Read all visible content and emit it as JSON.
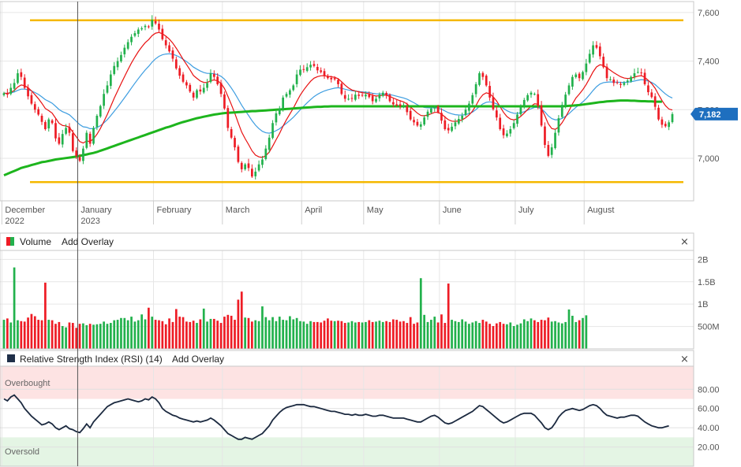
{
  "price_pane": {
    "price_tag": "7,182",
    "colors": {
      "up": "#22b14c",
      "down": "#ee1c25",
      "ma_long": "#1db51d",
      "ma_fast": "#e81010",
      "ma_slow": "#3d9de0",
      "channel": "#f5b800",
      "tag": "#1e6fbf"
    }
  },
  "volume_pane": {
    "title": "Volume",
    "add_overlay": "Add Overlay",
    "close": "×"
  },
  "rsi_pane": {
    "title": "Relative Strength Index (RSI) (14)",
    "add_overlay": "Add Overlay",
    "close": "×",
    "overbought_label": "Overbought",
    "oversold_label": "Oversold"
  },
  "chart_data": {
    "type": "candlestick",
    "period": "Dec 2022 – Aug 2023 (daily)",
    "x_labels": [
      {
        "label": "December",
        "sub": "2022",
        "index": 0
      },
      {
        "label": "January",
        "sub": "2023",
        "index": 22
      },
      {
        "label": "February",
        "sub": "",
        "index": 44
      },
      {
        "label": "March",
        "sub": "",
        "index": 64
      },
      {
        "label": "April",
        "sub": "",
        "index": 87
      },
      {
        "label": "May",
        "sub": "",
        "index": 105
      },
      {
        "label": "June",
        "sub": "",
        "index": 127
      },
      {
        "label": "July",
        "sub": "",
        "index": 149
      },
      {
        "label": "August",
        "sub": "",
        "index": 169
      }
    ],
    "price": {
      "y_ticks": [
        "7,600",
        "7,400",
        "7,200",
        "7,000"
      ],
      "y_tick_values": [
        7600,
        7400,
        7200,
        7000
      ],
      "ylim": [
        6825,
        7645
      ],
      "channel_levels": [
        7568,
        6902
      ],
      "last_price": 7182,
      "closes": [
        7268,
        7262,
        7290,
        7310,
        7350,
        7335,
        7290,
        7255,
        7225,
        7200,
        7180,
        7150,
        7120,
        7160,
        7145,
        7082,
        7060,
        7100,
        7125,
        7105,
        7030,
        7010,
        6990,
        7040,
        7105,
        7060,
        7125,
        7175,
        7215,
        7265,
        7300,
        7345,
        7380,
        7400,
        7425,
        7455,
        7478,
        7500,
        7515,
        7530,
        7535,
        7545,
        7540,
        7570,
        7555,
        7530,
        7490,
        7465,
        7440,
        7410,
        7370,
        7340,
        7315,
        7300,
        7275,
        7250,
        7280,
        7275,
        7290,
        7310,
        7350,
        7335,
        7305,
        7265,
        7205,
        7125,
        7085,
        7045,
        6985,
        6955,
        6975,
        6960,
        6925,
        6945,
        6975,
        6995,
        7040,
        7085,
        7145,
        7185,
        7205,
        7250,
        7265,
        7280,
        7300,
        7345,
        7365,
        7365,
        7375,
        7385,
        7380,
        7362,
        7355,
        7340,
        7330,
        7325,
        7325,
        7305,
        7265,
        7245,
        7245,
        7245,
        7262,
        7257,
        7258,
        7262,
        7252,
        7235,
        7245,
        7262,
        7270,
        7258,
        7235,
        7222,
        7218,
        7215,
        7213,
        7190,
        7160,
        7148,
        7135,
        7140,
        7168,
        7192,
        7205,
        7210,
        7190,
        7155,
        7120,
        7115,
        7130,
        7148,
        7162,
        7175,
        7200,
        7225,
        7260,
        7305,
        7350,
        7335,
        7300,
        7250,
        7202,
        7168,
        7120,
        7095,
        7102,
        7120,
        7145,
        7180,
        7212,
        7240,
        7260,
        7270,
        7265,
        7215,
        7135,
        7055,
        7010,
        7045,
        7105,
        7165,
        7220,
        7262,
        7300,
        7335,
        7345,
        7330,
        7355,
        7390,
        7430,
        7465,
        7455,
        7420,
        7375,
        7330,
        7325,
        7310,
        7310,
        7302,
        7310,
        7320,
        7335,
        7350,
        7355,
        7350,
        7305,
        7272,
        7252,
        7212,
        7160,
        7138,
        7132,
        7148,
        7182
      ],
      "ma_long": [
        6930,
        6936,
        6942,
        6948,
        6954,
        6960,
        6964,
        6968,
        6972,
        6976,
        6980,
        6984,
        6986,
        6989,
        6992,
        6995,
        6997,
        6999,
        7001,
        7003,
        7005,
        7007,
        7010,
        7013,
        7016,
        7019,
        7022,
        7026,
        7031,
        7036,
        7041,
        7046,
        7051,
        7056,
        7061,
        7066,
        7071,
        7076,
        7081,
        7086,
        7091,
        7096,
        7101,
        7106,
        7111,
        7116,
        7121,
        7126,
        7130,
        7135,
        7140,
        7145,
        7149,
        7153,
        7157,
        7161,
        7165,
        7168,
        7171,
        7174,
        7177,
        7180,
        7182,
        7184,
        7186,
        7187,
        7188,
        7189,
        7190,
        7191,
        7192,
        7193,
        7194,
        7194,
        7195,
        7196,
        7197,
        7198,
        7199,
        7200,
        7201,
        7202,
        7203,
        7204,
        7205,
        7206,
        7207,
        7208,
        7209,
        7210,
        7211,
        7212,
        7212,
        7213,
        7213,
        7214,
        7214,
        7214,
        7214,
        7214,
        7214,
        7214,
        7214,
        7214,
        7214,
        7214,
        7214,
        7214,
        7214,
        7214,
        7214,
        7214,
        7214,
        7214,
        7214,
        7214,
        7214,
        7214,
        7214,
        7214,
        7214,
        7214,
        7214,
        7214,
        7214,
        7214,
        7214,
        7214,
        7214,
        7214,
        7214,
        7214,
        7214,
        7214,
        7214,
        7214,
        7214,
        7214,
        7214,
        7214,
        7214,
        7214,
        7214,
        7214,
        7214,
        7214,
        7214,
        7214,
        7214,
        7214,
        7214,
        7214,
        7214,
        7214,
        7214,
        7214,
        7214,
        7214,
        7214,
        7214,
        7214,
        7214,
        7214,
        7215,
        7216,
        7217,
        7218,
        7219,
        7221,
        7223,
        7225,
        7227,
        7229,
        7231,
        7232,
        7234,
        7235,
        7236,
        7237,
        7238,
        7238,
        7238,
        7237,
        7237,
        7236,
        7235,
        7235,
        7234,
        7234,
        7233,
        7233,
        7233
      ]
    },
    "volume": {
      "y_ticks": [
        "2B",
        "1.5B",
        "1B",
        "500M"
      ],
      "y_tick_values": [
        2000,
        1500,
        1000,
        500
      ],
      "unit": "M",
      "ylim": [
        0,
        2200
      ],
      "values": [
        650,
        680,
        590,
        1820,
        640,
        620,
        610,
        700,
        780,
        730,
        650,
        640,
        1480,
        650,
        640,
        560,
        600,
        510,
        480,
        590,
        580,
        470,
        560,
        570,
        530,
        560,
        540,
        550,
        560,
        610,
        560,
        580,
        640,
        650,
        690,
        690,
        640,
        720,
        610,
        640,
        770,
        660,
        920,
        720,
        650,
        640,
        620,
        550,
        680,
        600,
        890,
        720,
        710,
        610,
        600,
        630,
        580,
        660,
        900,
        610,
        670,
        670,
        630,
        580,
        720,
        760,
        740,
        650,
        1100,
        1280,
        700,
        690,
        610,
        640,
        620,
        950,
        710,
        640,
        710,
        620,
        720,
        650,
        640,
        730,
        660,
        690,
        620,
        610,
        560,
        620,
        600,
        600,
        590,
        630,
        680,
        630,
        620,
        630,
        620,
        580,
        590,
        620,
        590,
        600,
        590,
        600,
        640,
        600,
        610,
        630,
        600,
        620,
        600,
        660,
        650,
        610,
        620,
        580,
        710,
        560,
        590,
        1580,
        760,
        600,
        650,
        720,
        590,
        770,
        580,
        1460,
        650,
        620,
        600,
        660,
        610,
        560,
        590,
        620,
        580,
        650,
        610,
        560,
        510,
        570,
        600,
        560,
        550,
        590,
        510,
        540,
        570,
        660,
        620,
        680,
        640,
        600,
        650,
        640,
        700,
        610,
        620,
        590,
        570,
        600,
        880,
        740,
        600,
        640,
        690,
        750
      ]
    },
    "rsi": {
      "y_ticks": [
        "80.00",
        "60.00",
        "40.00",
        "20.00"
      ],
      "y_tick_values": [
        80,
        60,
        40,
        20
      ],
      "ylim": [
        0,
        104
      ],
      "overbought": 70,
      "oversold": 30,
      "values": [
        70,
        68,
        72,
        74,
        70,
        66,
        60,
        56,
        52,
        49,
        46,
        43,
        44,
        46,
        44,
        40,
        38,
        40,
        42,
        39,
        38,
        36,
        35,
        39,
        44,
        40,
        46,
        50,
        54,
        58,
        62,
        64,
        66,
        67,
        68,
        69,
        70,
        69,
        68,
        67,
        68,
        70,
        69,
        72,
        70,
        66,
        60,
        57,
        55,
        53,
        52,
        50,
        49,
        48,
        47,
        46,
        47,
        46,
        47,
        48,
        50,
        48,
        45,
        42,
        38,
        34,
        32,
        30,
        28,
        28,
        30,
        29,
        28,
        30,
        32,
        34,
        38,
        42,
        48,
        52,
        56,
        59,
        61,
        62,
        63,
        64,
        64,
        64,
        63,
        62,
        62,
        61,
        60,
        59,
        58,
        57,
        57,
        56,
        55,
        54,
        54,
        53,
        54,
        53,
        53,
        54,
        53,
        52,
        52,
        53,
        53,
        52,
        51,
        50,
        50,
        50,
        50,
        49,
        48,
        47,
        46,
        46,
        48,
        50,
        52,
        53,
        51,
        48,
        45,
        44,
        45,
        47,
        49,
        51,
        53,
        55,
        57,
        60,
        63,
        62,
        59,
        56,
        53,
        50,
        47,
        45,
        46,
        48,
        50,
        52,
        54,
        55,
        55,
        55,
        53,
        49,
        45,
        40,
        38,
        40,
        45,
        51,
        55,
        58,
        59,
        60,
        59,
        58,
        59,
        61,
        63,
        64,
        63,
        60,
        56,
        53,
        52,
        51,
        50,
        51,
        51,
        52,
        53,
        53,
        52,
        49,
        46,
        44,
        42,
        41,
        40,
        40,
        41,
        42
      ]
    }
  }
}
